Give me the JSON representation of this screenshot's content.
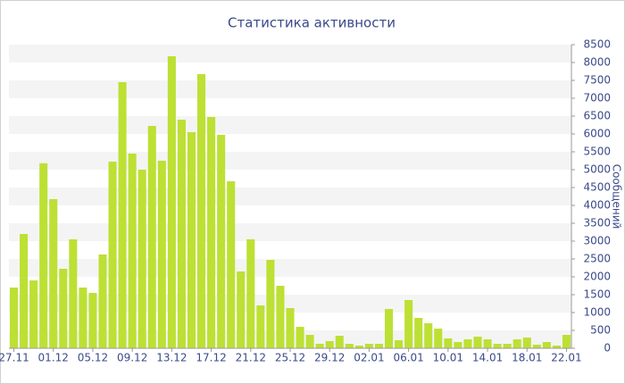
{
  "chart_data": {
    "type": "bar",
    "title": "Статистика активности",
    "y_label": "Сообщений",
    "categories": [
      "27.11",
      null,
      null,
      null,
      "01.12",
      null,
      null,
      null,
      "05.12",
      null,
      null,
      null,
      "09.12",
      null,
      null,
      null,
      "13.12",
      null,
      null,
      null,
      "17.12",
      null,
      null,
      null,
      "21.12",
      null,
      null,
      null,
      "25.12",
      null,
      null,
      null,
      "29.12",
      null,
      null,
      null,
      "02.01",
      null,
      null,
      null,
      "06.01",
      null,
      null,
      null,
      "10.01",
      null,
      null,
      null,
      "14.01",
      null,
      null,
      null,
      "18.01",
      null,
      null,
      null,
      "22.01"
    ],
    "values": [
      1700,
      3200,
      1900,
      5180,
      4175,
      2225,
      3050,
      1700,
      1550,
      2625,
      5225,
      7450,
      5450,
      5000,
      6225,
      5250,
      8175,
      6400,
      6050,
      7675,
      6475,
      5975,
      4675,
      2150,
      3050,
      1200,
      2475,
      1750,
      1125,
      600,
      375,
      125,
      200,
      350,
      125,
      75,
      125,
      125,
      1100,
      225,
      1350,
      850,
      700,
      550,
      275,
      175,
      250,
      325,
      250,
      125,
      125,
      250,
      300,
      100,
      175,
      75,
      375
    ],
    "color": "#bde034",
    "ylim": [
      0,
      8500
    ],
    "yticks": [
      0,
      500,
      1000,
      1500,
      2000,
      2500,
      3000,
      3500,
      4000,
      4500,
      5000,
      5500,
      6000,
      6500,
      7000,
      7500,
      8000,
      8500
    ],
    "grid": true,
    "y_axis_side": "right"
  }
}
